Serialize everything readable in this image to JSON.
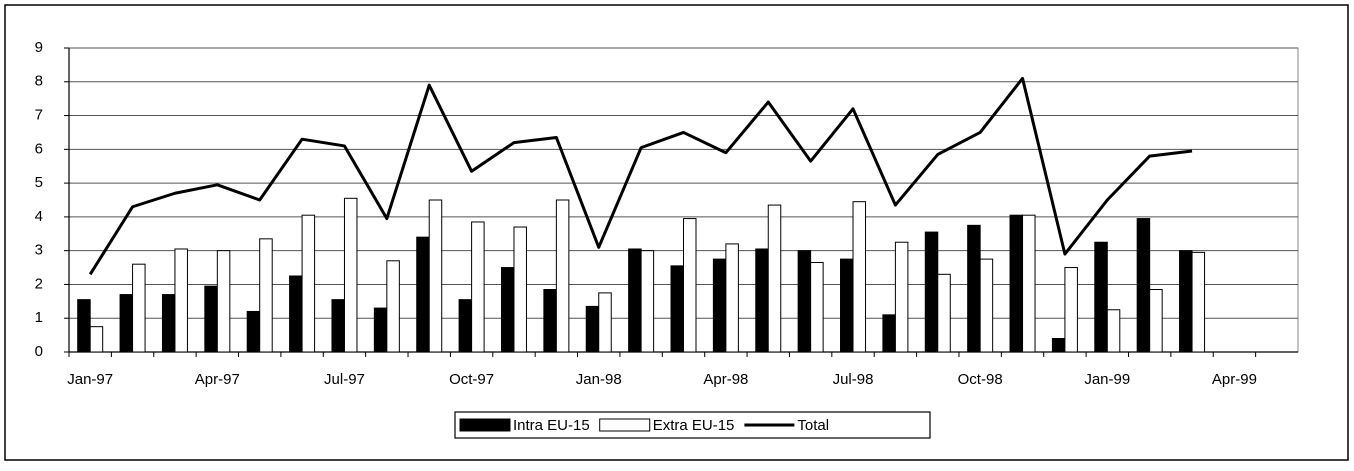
{
  "chart_data": {
    "type": "bar_line",
    "categories": [
      "Jan-97",
      null,
      null,
      "Apr-97",
      null,
      null,
      "Jul-97",
      null,
      null,
      "Oct-97",
      null,
      null,
      "Jan-98",
      null,
      null,
      "Apr-98",
      null,
      null,
      "Jul-98",
      null,
      null,
      "Oct-98",
      null,
      null,
      "Jan-99",
      null,
      null,
      "Apr-99",
      null
    ],
    "series": [
      {
        "name": "Intra EU-15",
        "type": "bar",
        "color": "#000000",
        "values": [
          1.55,
          1.7,
          1.7,
          1.95,
          1.2,
          2.25,
          1.55,
          1.3,
          3.4,
          1.55,
          2.5,
          1.85,
          1.35,
          3.05,
          2.55,
          2.75,
          3.05,
          3.0,
          2.75,
          1.1,
          3.55,
          3.75,
          4.05,
          0.4,
          3.25,
          3.95,
          3.0,
          null,
          null
        ]
      },
      {
        "name": "Extra EU-15",
        "type": "bar",
        "color": "#ffffff",
        "values": [
          0.75,
          2.6,
          3.05,
          3.0,
          3.35,
          4.05,
          4.55,
          2.7,
          4.5,
          3.85,
          3.7,
          4.5,
          1.75,
          3.0,
          3.95,
          3.2,
          4.35,
          2.65,
          4.45,
          3.25,
          2.3,
          2.75,
          4.05,
          2.5,
          1.25,
          1.85,
          2.95,
          null,
          null
        ]
      },
      {
        "name": "Total",
        "type": "line",
        "color": "#000000",
        "values": [
          2.3,
          4.3,
          4.7,
          4.95,
          4.5,
          6.3,
          6.1,
          3.95,
          7.9,
          5.35,
          6.2,
          6.35,
          3.1,
          6.05,
          6.5,
          5.9,
          7.4,
          5.65,
          7.2,
          4.35,
          5.85,
          6.5,
          8.1,
          2.9,
          4.5,
          5.8,
          5.95,
          null,
          null
        ]
      }
    ],
    "ylim": [
      0,
      9
    ],
    "yticks": [
      0,
      1,
      2,
      3,
      4,
      5,
      6,
      7,
      8,
      9
    ],
    "grid": true,
    "legend": "bottom"
  }
}
